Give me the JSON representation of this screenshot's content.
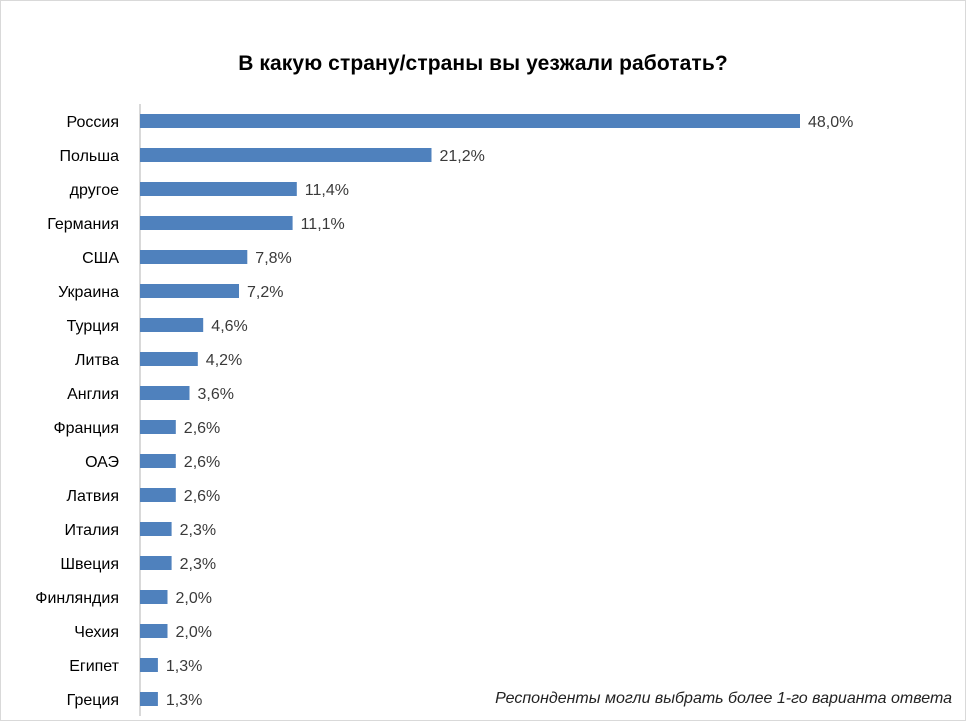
{
  "chart_data": {
    "type": "bar",
    "orientation": "horizontal",
    "title": "В какую страну/страны вы уезжали работать?",
    "categories": [
      "Россия",
      "Польша",
      "другое",
      "Германия",
      "США",
      "Украина",
      "Турция",
      "Литва",
      "Англия",
      "Франция",
      "ОАЭ",
      "Латвия",
      "Италия",
      "Швеция",
      "Финляндия",
      "Чехия",
      "Египет",
      "Греция"
    ],
    "values": [
      48.0,
      21.2,
      11.4,
      11.1,
      7.8,
      7.2,
      4.6,
      4.2,
      3.6,
      2.6,
      2.6,
      2.6,
      2.3,
      2.3,
      2.0,
      2.0,
      1.3,
      1.3
    ],
    "value_labels": [
      "48,0%",
      "21,2%",
      "11,4%",
      "11,1%",
      "7,8%",
      "7,2%",
      "4,6%",
      "4,2%",
      "3,6%",
      "2,6%",
      "2,6%",
      "2,6%",
      "2,3%",
      "2,3%",
      "2,0%",
      "2,0%",
      "1,3%",
      "1,3%"
    ],
    "xlim": [
      0,
      48
    ],
    "unit": "%",
    "grid": false,
    "legend": false,
    "bar_color": "#4f81bd",
    "annotation": "Респонденты могли выбрать более 1-го варианта ответа"
  }
}
